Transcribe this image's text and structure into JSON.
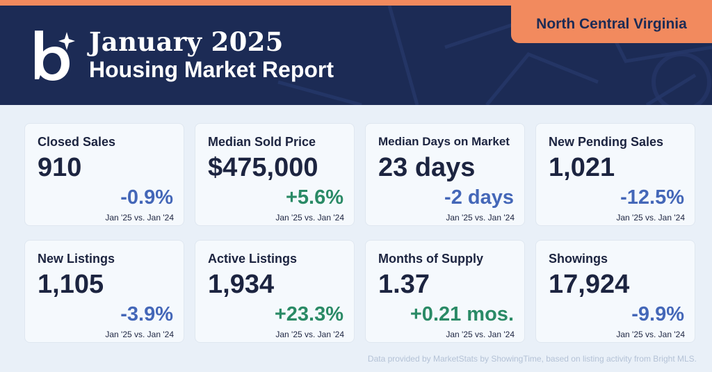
{
  "header": {
    "title_line1": "January 2025",
    "title_line2": "Housing Market Report",
    "region": "North Central Virginia",
    "logo_icon": "b-sparkle-logo-icon"
  },
  "colors": {
    "header_bg": "#1c2b55",
    "accent": "#f28a5e",
    "page_bg": "#e9f0f8",
    "card_bg": "#f5f9fd",
    "negative_change": "#4467b8",
    "positive_change": "#2a8a66"
  },
  "metrics": [
    {
      "label": "Closed Sales",
      "value": "910",
      "change": "-0.9%",
      "direction": "negative",
      "compare": "Jan '25 vs. Jan '24"
    },
    {
      "label": "Median Sold Price",
      "value": "$475,000",
      "change": "+5.6%",
      "direction": "positive",
      "compare": "Jan '25 vs. Jan '24"
    },
    {
      "label": "Median Days on Market",
      "value": "23 days",
      "change": "-2 days",
      "direction": "negative",
      "compare": "Jan '25 vs. Jan '24"
    },
    {
      "label": "New Pending Sales",
      "value": "1,021",
      "change": "-12.5%",
      "direction": "negative",
      "compare": "Jan '25 vs. Jan '24"
    },
    {
      "label": "New Listings",
      "value": "1,105",
      "change": "-3.9%",
      "direction": "negative",
      "compare": "Jan '25 vs. Jan '24"
    },
    {
      "label": "Active Listings",
      "value": "1,934",
      "change": "+23.3%",
      "direction": "positive",
      "compare": "Jan '25 vs. Jan '24"
    },
    {
      "label": "Months of Supply",
      "value": "1.37",
      "change": "+0.21 mos.",
      "direction": "positive",
      "compare": "Jan '25 vs. Jan '24"
    },
    {
      "label": "Showings",
      "value": "17,924",
      "change": "-9.9%",
      "direction": "negative",
      "compare": "Jan '25 vs. Jan '24"
    }
  ],
  "footer": {
    "note": "Data provided by MarketStats by ShowingTime, based on listing activity from Bright MLS."
  }
}
